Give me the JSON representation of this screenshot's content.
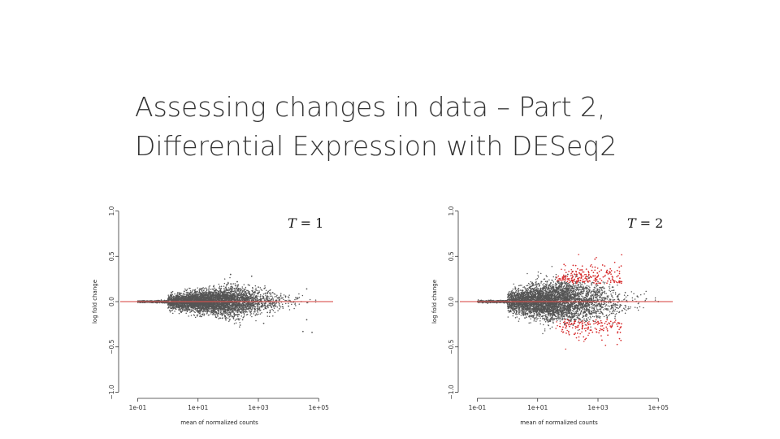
{
  "title": {
    "line1": "Assessing changes in data – Part 2,",
    "line2": "Differential Expression with DESeq2"
  },
  "chart_data": [
    {
      "type": "scatter",
      "subtitle": "T = 1",
      "subtitle_var": "T",
      "subtitle_value": "= 1",
      "xlabel": "mean of normalized counts",
      "ylabel": "log fold change",
      "x_scale": "log10",
      "xlim": [
        0.03,
        300000
      ],
      "ylim": [
        -1.05,
        1.05
      ],
      "x_ticks": [
        "1e-01",
        "1e+01",
        "1e+03",
        "1e+05"
      ],
      "x_tick_values": [
        0.1,
        10,
        1000,
        100000
      ],
      "y_ticks": [
        "1.0",
        "0.5",
        "0.0",
        "−0.5",
        "−1.0"
      ],
      "y_tick_values": [
        1.0,
        0.5,
        0.0,
        -0.5,
        -1.0
      ],
      "reference_line": 0,
      "series": [
        {
          "color": "#555555",
          "points": [
            [
              0.2,
              0.0
            ],
            [
              0.5,
              0.01
            ],
            [
              1,
              -0.01
            ],
            [
              2,
              0.02
            ],
            [
              3,
              -0.03
            ],
            [
              5,
              0.04
            ],
            [
              8,
              -0.05
            ],
            [
              10,
              0.07
            ],
            [
              15,
              -0.08
            ],
            [
              20,
              0.1
            ],
            [
              30,
              -0.12
            ],
            [
              50,
              0.15
            ],
            [
              80,
              -0.16
            ],
            [
              100,
              0.2
            ],
            [
              150,
              -0.18
            ],
            [
              200,
              0.22
            ],
            [
              300,
              -0.2
            ],
            [
              500,
              0.18
            ],
            [
              800,
              -0.15
            ],
            [
              1000,
              0.16
            ],
            [
              2000,
              -0.12
            ],
            [
              3000,
              0.1
            ],
            [
              5000,
              -0.08
            ],
            [
              8000,
              0.06
            ],
            [
              10000,
              -0.05
            ],
            [
              20000,
              0.04
            ],
            [
              40000,
              0.14
            ],
            [
              40000,
              -0.2
            ],
            [
              60000,
              -0.34
            ],
            [
              30000,
              -0.33
            ],
            [
              120,
              0.3
            ],
            [
              250,
              -0.26
            ],
            [
              600,
              0.28
            ],
            [
              1500,
              -0.24
            ]
          ]
        }
      ]
    },
    {
      "type": "scatter",
      "subtitle": "T = 2",
      "subtitle_var": "T",
      "subtitle_value": "= 2",
      "xlabel": "mean of normalized counts",
      "ylabel": "log fold change",
      "x_scale": "log10",
      "xlim": [
        0.03,
        300000
      ],
      "ylim": [
        -1.05,
        1.05
      ],
      "x_ticks": [
        "1e-01",
        "1e+01",
        "1e+03",
        "1e+05"
      ],
      "x_tick_values": [
        0.1,
        10,
        1000,
        100000
      ],
      "y_ticks": [
        "1.0",
        "0.5",
        "0.0",
        "−0.5",
        "−1.0"
      ],
      "y_tick_values": [
        1.0,
        0.5,
        0.0,
        -0.5,
        -1.0
      ],
      "reference_line": 0,
      "series": [
        {
          "color": "#555555",
          "points": [
            [
              0.2,
              0.0
            ],
            [
              0.5,
              0.01
            ],
            [
              1,
              -0.02
            ],
            [
              2,
              0.03
            ],
            [
              3,
              -0.04
            ],
            [
              5,
              0.06
            ],
            [
              8,
              -0.07
            ],
            [
              10,
              0.1
            ],
            [
              15,
              -0.12
            ],
            [
              20,
              0.15
            ],
            [
              30,
              -0.18
            ],
            [
              50,
              0.22
            ],
            [
              80,
              -0.24
            ],
            [
              100,
              0.3
            ],
            [
              150,
              -0.26
            ],
            [
              200,
              0.28
            ],
            [
              300,
              -0.3
            ],
            [
              500,
              0.26
            ],
            [
              800,
              -0.22
            ],
            [
              1000,
              0.22
            ],
            [
              2000,
              -0.18
            ],
            [
              3000,
              0.16
            ],
            [
              5000,
              -0.12
            ],
            [
              8000,
              0.1
            ],
            [
              10000,
              -0.08
            ],
            [
              20000,
              0.06
            ],
            [
              40000,
              0.03
            ],
            [
              100000,
              0.0
            ]
          ]
        },
        {
          "color": "#d62728",
          "points": [
            [
              100,
              0.25
            ],
            [
              150,
              0.4
            ],
            [
              200,
              0.3
            ],
            [
              300,
              0.35
            ],
            [
              500,
              0.3
            ],
            [
              800,
              0.38
            ],
            [
              1000,
              0.28
            ],
            [
              2000,
              0.32
            ],
            [
              3000,
              0.25
            ],
            [
              5000,
              0.22
            ],
            [
              100,
              -0.2
            ],
            [
              200,
              -0.28
            ],
            [
              300,
              -0.3
            ],
            [
              500,
              -0.25
            ],
            [
              1000,
              -0.22
            ],
            [
              2000,
              -0.2
            ]
          ]
        }
      ]
    }
  ]
}
